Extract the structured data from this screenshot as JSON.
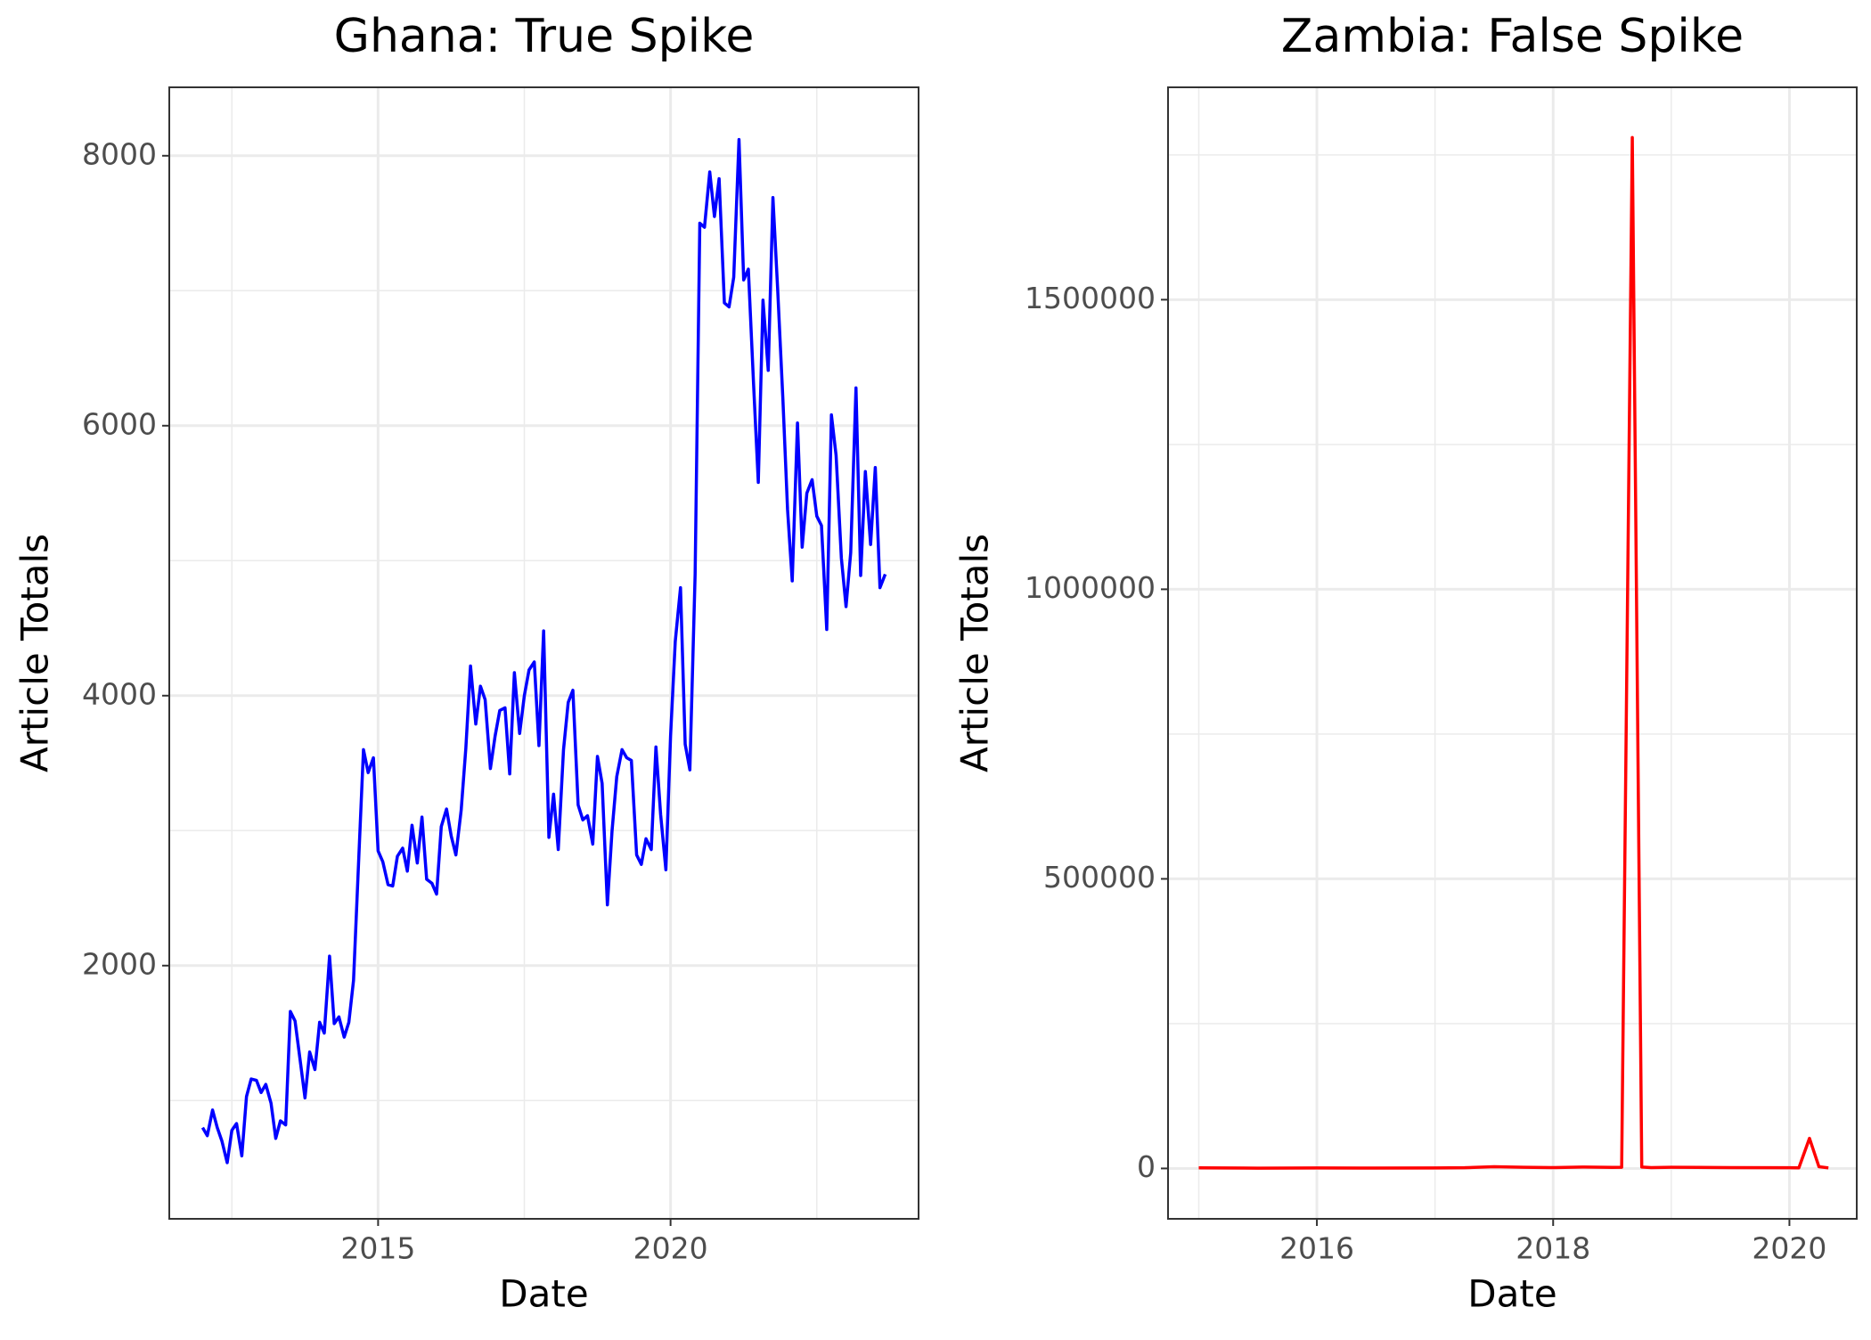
{
  "chart_data": [
    {
      "type": "line",
      "title": "Ghana: True Spike",
      "x_label": "Date",
      "y_label": "Article Totals",
      "color": "#0000ff",
      "grid": true,
      "xlim": [
        2011.43,
        2024.24
      ],
      "xticks": [
        2015,
        2020
      ],
      "ylim": [
        124,
        8507
      ],
      "yticks": [
        2000,
        4000,
        6000,
        8000
      ],
      "x": [
        2012.0,
        2012.08,
        2012.17,
        2012.25,
        2012.33,
        2012.42,
        2012.5,
        2012.58,
        2012.67,
        2012.75,
        2012.83,
        2012.92,
        2013.0,
        2013.08,
        2013.17,
        2013.25,
        2013.33,
        2013.42,
        2013.5,
        2013.58,
        2013.67,
        2013.75,
        2013.83,
        2013.92,
        2014.0,
        2014.08,
        2014.17,
        2014.25,
        2014.33,
        2014.42,
        2014.5,
        2014.58,
        2014.67,
        2014.75,
        2014.83,
        2014.92,
        2015.0,
        2015.08,
        2015.17,
        2015.25,
        2015.33,
        2015.42,
        2015.5,
        2015.58,
        2015.67,
        2015.75,
        2015.83,
        2015.92,
        2016.0,
        2016.08,
        2016.17,
        2016.25,
        2016.33,
        2016.42,
        2016.5,
        2016.58,
        2016.67,
        2016.75,
        2016.83,
        2016.92,
        2017.0,
        2017.08,
        2017.17,
        2017.25,
        2017.33,
        2017.42,
        2017.5,
        2017.58,
        2017.67,
        2017.75,
        2017.83,
        2017.92,
        2018.0,
        2018.08,
        2018.17,
        2018.25,
        2018.33,
        2018.42,
        2018.5,
        2018.58,
        2018.67,
        2018.75,
        2018.83,
        2018.92,
        2019.0,
        2019.08,
        2019.17,
        2019.25,
        2019.33,
        2019.42,
        2019.5,
        2019.58,
        2019.67,
        2019.75,
        2019.83,
        2019.92,
        2020.0,
        2020.08,
        2020.17,
        2020.25,
        2020.33,
        2020.42,
        2020.5,
        2020.58,
        2020.67,
        2020.75,
        2020.83,
        2020.92,
        2021.0,
        2021.08,
        2021.17,
        2021.25,
        2021.33,
        2021.42,
        2021.5,
        2021.58,
        2021.67,
        2021.75,
        2021.83,
        2021.92,
        2022.0,
        2022.08,
        2022.17,
        2022.25,
        2022.33,
        2022.42,
        2022.5,
        2022.58,
        2022.67,
        2022.75,
        2022.83,
        2022.92,
        2023.0,
        2023.08,
        2023.17,
        2023.25,
        2023.33,
        2023.42,
        2023.5,
        2023.58,
        2023.67
      ],
      "values": [
        800,
        740,
        930,
        800,
        700,
        540,
        780,
        830,
        590,
        1030,
        1160,
        1150,
        1060,
        1120,
        980,
        720,
        850,
        820,
        1660,
        1590,
        1290,
        1020,
        1360,
        1230,
        1580,
        1500,
        2070,
        1570,
        1620,
        1470,
        1580,
        1890,
        2800,
        3600,
        3430,
        3540,
        2850,
        2770,
        2600,
        2590,
        2810,
        2870,
        2700,
        3040,
        2760,
        3100,
        2640,
        2610,
        2530,
        3030,
        3160,
        2960,
        2820,
        3150,
        3610,
        4220,
        3790,
        4070,
        3970,
        3460,
        3700,
        3890,
        3910,
        3420,
        4170,
        3720,
        4000,
        4190,
        4250,
        3630,
        4480,
        2950,
        3270,
        2860,
        3600,
        3950,
        4040,
        3190,
        3080,
        3110,
        2900,
        3550,
        3350,
        2450,
        3000,
        3400,
        3600,
        3540,
        3520,
        2820,
        2750,
        2940,
        2860,
        3620,
        3120,
        2710,
        3700,
        4400,
        4800,
        3640,
        3450,
        4900,
        7500,
        7470,
        7880,
        7550,
        7830,
        6910,
        6880,
        7100,
        8120,
        7080,
        7160,
        6300,
        5580,
        6930,
        6410,
        7690,
        7020,
        6200,
        5380,
        4850,
        6020,
        5100,
        5500,
        5600,
        5330,
        5260,
        4490,
        6080,
        5780,
        5020,
        4660,
        5060,
        6280,
        4890,
        5660,
        5120,
        5690,
        4800,
        4900
      ]
    },
    {
      "type": "line",
      "title": "Zambia: False Spike",
      "x_label": "Date",
      "y_label": "Article Totals",
      "color": "#ff0000",
      "grid": true,
      "xlim": [
        2014.74,
        2020.57
      ],
      "xticks": [
        2016,
        2018,
        2020
      ],
      "ylim": [
        -87000,
        1866700
      ],
      "yticks": [
        0,
        500000,
        1000000,
        1500000
      ],
      "x": [
        2015.0,
        2015.5,
        2016.0,
        2016.5,
        2017.0,
        2017.25,
        2017.5,
        2017.75,
        2018.0,
        2018.25,
        2018.5,
        2018.58,
        2018.67,
        2018.75,
        2018.83,
        2019.0,
        2019.5,
        2020.0,
        2020.08,
        2020.17,
        2020.25,
        2020.33
      ],
      "values": [
        1000,
        500,
        800,
        600,
        900,
        1200,
        3000,
        2000,
        1500,
        2500,
        1800,
        2000,
        1780000,
        2500,
        1500,
        2000,
        1500,
        1200,
        1000,
        52000,
        3000,
        1000
      ]
    }
  ]
}
